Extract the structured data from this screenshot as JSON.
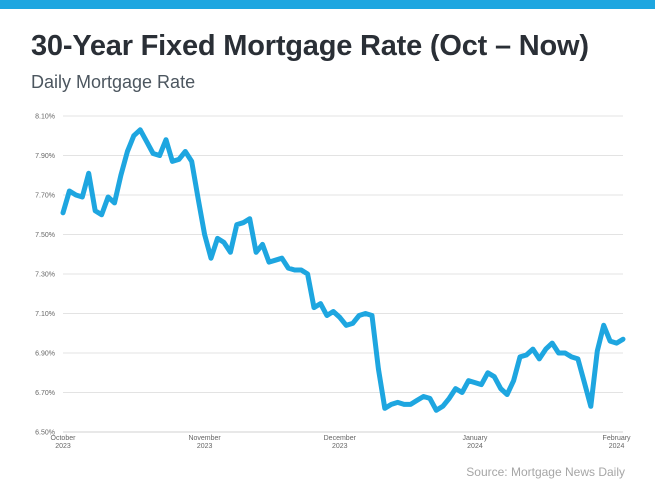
{
  "title": "30-Year Fixed Mortgage Rate (Oct – Now)",
  "subtitle": "Daily Mortgage Rate",
  "source": "Source: Mortgage News Daily",
  "colors": {
    "accent": "#1ea6e0",
    "line": "#1ea6e0",
    "grid": "#e3e3e3"
  },
  "chart_data": {
    "type": "line",
    "title": "30-Year Fixed Mortgage Rate (Oct – Now)",
    "subtitle": "Daily Mortgage Rate",
    "xlabel": "",
    "ylabel": "",
    "ylim": [
      6.5,
      8.1
    ],
    "yticks": [
      "8.10%",
      "7.90%",
      "7.70%",
      "7.50%",
      "7.30%",
      "7.10%",
      "6.90%",
      "6.70%",
      "6.50%"
    ],
    "ytick_values": [
      8.1,
      7.9,
      7.7,
      7.5,
      7.3,
      7.1,
      6.9,
      6.7,
      6.5
    ],
    "xticks": [
      {
        "month": "October",
        "year": "2023",
        "index": 0
      },
      {
        "month": "November",
        "year": "2023",
        "index": 22
      },
      {
        "month": "December",
        "year": "2023",
        "index": 43
      },
      {
        "month": "January",
        "year": "2024",
        "index": 64
      },
      {
        "month": "February",
        "year": "2024",
        "index": 86
      }
    ],
    "grid": true,
    "legend": "none",
    "values": [
      7.61,
      7.72,
      7.7,
      7.69,
      7.81,
      7.62,
      7.6,
      7.69,
      7.66,
      7.8,
      7.92,
      8.0,
      8.03,
      7.97,
      7.91,
      7.9,
      7.98,
      7.87,
      7.88,
      7.92,
      7.87,
      7.68,
      7.5,
      7.38,
      7.48,
      7.46,
      7.41,
      7.55,
      7.56,
      7.58,
      7.41,
      7.45,
      7.36,
      7.37,
      7.38,
      7.33,
      7.32,
      7.32,
      7.3,
      7.13,
      7.15,
      7.09,
      7.11,
      7.08,
      7.04,
      7.05,
      7.09,
      7.1,
      7.09,
      6.82,
      6.62,
      6.64,
      6.65,
      6.64,
      6.64,
      6.66,
      6.68,
      6.67,
      6.61,
      6.63,
      6.67,
      6.72,
      6.7,
      6.76,
      6.75,
      6.74,
      6.8,
      6.78,
      6.72,
      6.69,
      6.76,
      6.88,
      6.89,
      6.92,
      6.87,
      6.92,
      6.95,
      6.9,
      6.9,
      6.88,
      6.87,
      6.75,
      6.63,
      6.91,
      7.04,
      6.96,
      6.95,
      6.97
    ]
  }
}
